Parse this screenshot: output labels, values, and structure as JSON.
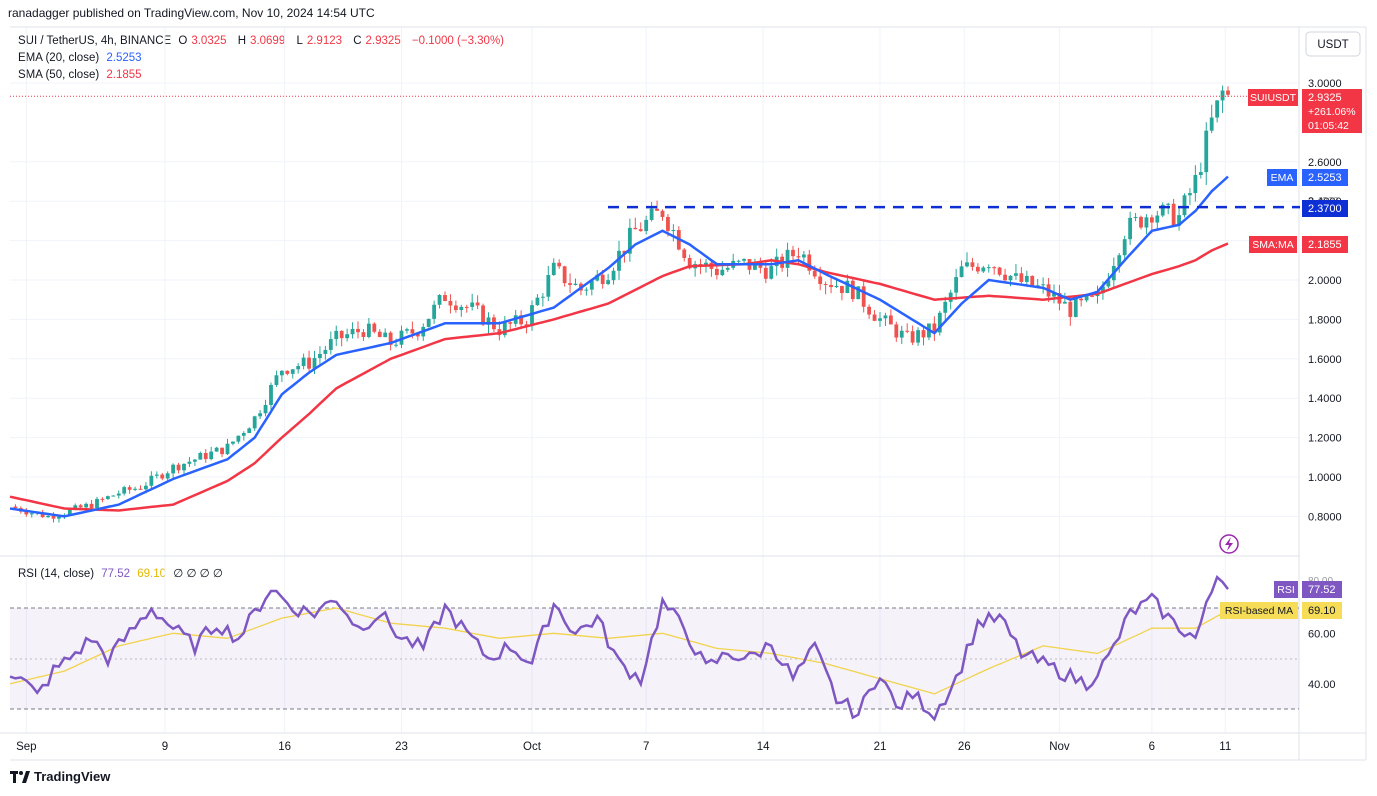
{
  "header": {
    "text": "ranadagger published on TradingView.com, Nov 10, 2024 14:54 UTC"
  },
  "legend": {
    "symbol": "SUI / TetherUS, 4h, BINANCE",
    "o_label": "O",
    "o": "3.0325",
    "h_label": "H",
    "h": "3.0699",
    "l_label": "L",
    "l": "2.9123",
    "c_label": "C",
    "c": "2.9325",
    "change": "−0.1000 (−3.30%)",
    "ema_label": "EMA (20, close)",
    "ema_value": "2.5253",
    "sma_label": "SMA (50, close)",
    "sma_value": "2.1855",
    "rsi_label": "RSI (14, close)",
    "rsi_value": "77.52",
    "rsi_ma_value": "69.10",
    "rsi_extra": "∅ ∅ ∅ ∅"
  },
  "currency": "USDT",
  "price_tags": {
    "symbol_name": "SUIUSDT",
    "price": "2.9325",
    "change_pct": "+261.06%",
    "countdown": "01:05:42",
    "ema_name": "EMA",
    "ema": "2.5253",
    "level": "2.3700",
    "sma_name": "SMA:MA",
    "sma": "2.1855",
    "rsi_name": "RSI",
    "rsi": "77.52",
    "rsima_name": "RSI-based MA",
    "rsima": "69.10",
    "rsi_hidden_top": "80.00"
  },
  "footer": {
    "brand": "TradingView"
  },
  "colors": {
    "up": "#26a69a",
    "down": "#ef5350",
    "ema": "#2962ff",
    "sma": "#f23645",
    "rsi": "#7e57c2",
    "rsi_ma": "#f2d34c",
    "level": "#0d2fd4"
  },
  "chart_data": [
    {
      "type": "candlestick",
      "title": "SUI / TetherUS, 4h, BINANCE",
      "y_ticks": [
        "0.8000",
        "1.0000",
        "1.2000",
        "1.4000",
        "1.6000",
        "1.8000",
        "2.0000",
        "2.2000",
        "2.4000",
        "2.6000",
        "3.0000"
      ],
      "x_ticks": [
        "Sep",
        "9",
        "16",
        "23",
        "Oct",
        "7",
        "14",
        "21",
        "26",
        "Nov",
        "6",
        "11"
      ],
      "horizontal_level": 2.37,
      "series_names": [
        "EMA (20, close)",
        "SMA (50, close)"
      ],
      "price_close_path": [
        [
          0,
          0.85
        ],
        [
          4,
          0.82
        ],
        [
          7,
          0.8
        ],
        [
          10,
          0.82
        ],
        [
          15,
          0.86
        ],
        [
          20,
          0.92
        ],
        [
          24,
          0.95
        ],
        [
          30,
          1.05
        ],
        [
          35,
          1.1
        ],
        [
          40,
          1.15
        ],
        [
          45,
          1.3
        ],
        [
          50,
          1.55
        ],
        [
          55,
          1.58
        ],
        [
          60,
          1.7
        ],
        [
          65,
          1.75
        ],
        [
          70,
          1.68
        ],
        [
          75,
          1.75
        ],
        [
          80,
          1.92
        ],
        [
          85,
          1.85
        ],
        [
          90,
          1.75
        ],
        [
          95,
          1.8
        ],
        [
          100,
          2.05
        ],
        [
          105,
          1.95
        ],
        [
          110,
          2.05
        ],
        [
          115,
          2.25
        ],
        [
          120,
          2.35
        ],
        [
          125,
          2.1
        ],
        [
          130,
          2.05
        ],
        [
          135,
          2.08
        ],
        [
          140,
          2.05
        ],
        [
          145,
          2.15
        ],
        [
          150,
          2.0
        ],
        [
          155,
          1.95
        ],
        [
          160,
          1.8
        ],
        [
          165,
          1.7
        ],
        [
          170,
          1.75
        ],
        [
          175,
          2.05
        ],
        [
          180,
          2.1
        ],
        [
          185,
          2.0
        ],
        [
          190,
          1.95
        ],
        [
          195,
          1.85
        ],
        [
          200,
          1.9
        ],
        [
          205,
          2.25
        ],
        [
          210,
          2.35
        ],
        [
          215,
          2.32
        ],
        [
          218,
          2.5
        ],
        [
          221,
          2.8
        ],
        [
          223,
          2.95
        ],
        [
          224,
          2.93
        ]
      ],
      "ema_path": [
        [
          0,
          0.84
        ],
        [
          10,
          0.8
        ],
        [
          20,
          0.86
        ],
        [
          30,
          0.99
        ],
        [
          40,
          1.09
        ],
        [
          45,
          1.2
        ],
        [
          50,
          1.42
        ],
        [
          55,
          1.53
        ],
        [
          60,
          1.62
        ],
        [
          70,
          1.68
        ],
        [
          80,
          1.78
        ],
        [
          90,
          1.78
        ],
        [
          100,
          1.86
        ],
        [
          110,
          2.06
        ],
        [
          115,
          2.18
        ],
        [
          120,
          2.25
        ],
        [
          125,
          2.18
        ],
        [
          130,
          2.08
        ],
        [
          140,
          2.08
        ],
        [
          145,
          2.1
        ],
        [
          150,
          2.03
        ],
        [
          160,
          1.9
        ],
        [
          170,
          1.73
        ],
        [
          175,
          1.88
        ],
        [
          180,
          2.0
        ],
        [
          190,
          1.96
        ],
        [
          195,
          1.9
        ],
        [
          200,
          1.94
        ],
        [
          205,
          2.1
        ],
        [
          210,
          2.25
        ],
        [
          215,
          2.28
        ],
        [
          218,
          2.35
        ],
        [
          221,
          2.45
        ],
        [
          224,
          2.525
        ]
      ],
      "sma_path": [
        [
          0,
          0.9
        ],
        [
          10,
          0.84
        ],
        [
          20,
          0.83
        ],
        [
          30,
          0.86
        ],
        [
          40,
          0.98
        ],
        [
          45,
          1.07
        ],
        [
          50,
          1.2
        ],
        [
          55,
          1.32
        ],
        [
          60,
          1.45
        ],
        [
          70,
          1.6
        ],
        [
          80,
          1.7
        ],
        [
          90,
          1.73
        ],
        [
          100,
          1.8
        ],
        [
          110,
          1.88
        ],
        [
          120,
          2.02
        ],
        [
          125,
          2.07
        ],
        [
          135,
          2.08
        ],
        [
          140,
          2.1
        ],
        [
          145,
          2.08
        ],
        [
          150,
          2.04
        ],
        [
          160,
          1.98
        ],
        [
          170,
          1.9
        ],
        [
          180,
          1.92
        ],
        [
          190,
          1.9
        ],
        [
          200,
          1.93
        ],
        [
          205,
          1.98
        ],
        [
          210,
          2.03
        ],
        [
          215,
          2.07
        ],
        [
          218,
          2.1
        ],
        [
          221,
          2.15
        ],
        [
          224,
          2.1855
        ]
      ],
      "ylim": [
        0.66,
        3.18
      ]
    },
    {
      "type": "line",
      "title": "RSI (14, close)",
      "y_ticks": [
        "40.00",
        "60.00"
      ],
      "bands": [
        30,
        70
      ],
      "series_names": [
        "RSI",
        "RSI-based MA"
      ],
      "rsi_path": [
        [
          0,
          45
        ],
        [
          3,
          40
        ],
        [
          5,
          35
        ],
        [
          8,
          45
        ],
        [
          12,
          52
        ],
        [
          15,
          58
        ],
        [
          18,
          50
        ],
        [
          22,
          60
        ],
        [
          26,
          70
        ],
        [
          30,
          62
        ],
        [
          34,
          55
        ],
        [
          38,
          64
        ],
        [
          42,
          58
        ],
        [
          45,
          68
        ],
        [
          48,
          78
        ],
        [
          52,
          70
        ],
        [
          56,
          68
        ],
        [
          60,
          74
        ],
        [
          64,
          62
        ],
        [
          68,
          68
        ],
        [
          72,
          58
        ],
        [
          76,
          54
        ],
        [
          80,
          70
        ],
        [
          84,
          60
        ],
        [
          88,
          50
        ],
        [
          92,
          55
        ],
        [
          96,
          48
        ],
        [
          100,
          72
        ],
        [
          104,
          60
        ],
        [
          108,
          66
        ],
        [
          112,
          48
        ],
        [
          116,
          42
        ],
        [
          120,
          72
        ],
        [
          124,
          62
        ],
        [
          128,
          46
        ],
        [
          132,
          52
        ],
        [
          136,
          50
        ],
        [
          140,
          56
        ],
        [
          144,
          42
        ],
        [
          148,
          54
        ],
        [
          152,
          34
        ],
        [
          156,
          28
        ],
        [
          160,
          45
        ],
        [
          163,
          30
        ],
        [
          166,
          36
        ],
        [
          170,
          28
        ],
        [
          174,
          42
        ],
        [
          178,
          64
        ],
        [
          182,
          66
        ],
        [
          186,
          52
        ],
        [
          190,
          48
        ],
        [
          194,
          44
        ],
        [
          198,
          40
        ],
        [
          202,
          50
        ],
        [
          206,
          68
        ],
        [
          210,
          73
        ],
        [
          214,
          64
        ],
        [
          218,
          58
        ],
        [
          220,
          70
        ],
        [
          222,
          83
        ],
        [
          224,
          77.5
        ]
      ],
      "rsi_ma_path": [
        [
          0,
          40
        ],
        [
          10,
          45
        ],
        [
          20,
          55
        ],
        [
          30,
          60
        ],
        [
          40,
          58
        ],
        [
          50,
          66
        ],
        [
          60,
          70
        ],
        [
          70,
          64
        ],
        [
          80,
          62
        ],
        [
          90,
          58
        ],
        [
          100,
          60
        ],
        [
          110,
          58
        ],
        [
          120,
          60
        ],
        [
          130,
          54
        ],
        [
          140,
          52
        ],
        [
          150,
          48
        ],
        [
          160,
          42
        ],
        [
          170,
          36
        ],
        [
          180,
          46
        ],
        [
          190,
          55
        ],
        [
          200,
          52
        ],
        [
          210,
          62
        ],
        [
          218,
          62
        ],
        [
          224,
          69.1
        ]
      ],
      "ylim": [
        22,
        92
      ]
    }
  ]
}
